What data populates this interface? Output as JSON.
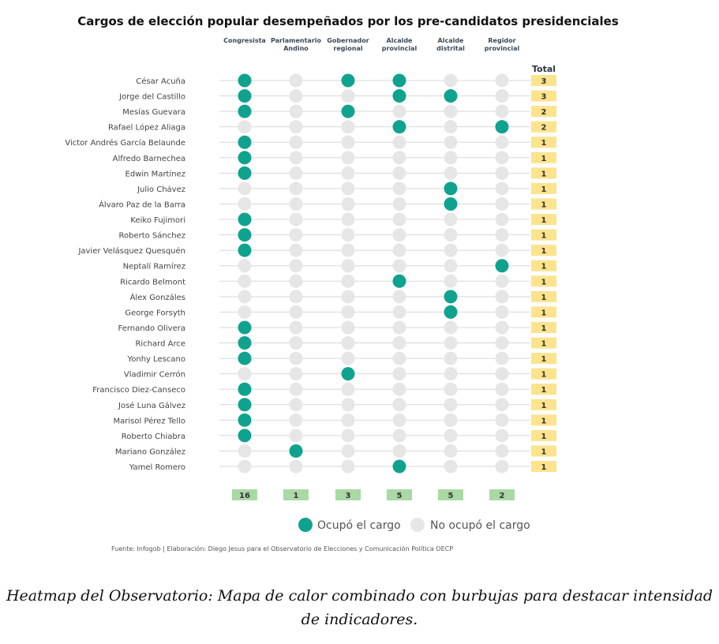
{
  "chart_data": {
    "type": "heatmap",
    "title": "Cargos de elección popular desempeñados por los pre-candidatos presidenciales",
    "columns": [
      "Congresista",
      "Parlamentario\nAndino",
      "Gobernador\nregional",
      "Alcalde\nprovincial",
      "Alcalde\ndistrital",
      "Regidor\nprovincial"
    ],
    "total_label": "Total",
    "rows": [
      {
        "name": "César Acuña",
        "values": [
          1,
          0,
          1,
          1,
          0,
          0
        ],
        "total": 3
      },
      {
        "name": "Jorge del Castillo",
        "values": [
          1,
          0,
          0,
          1,
          1,
          0
        ],
        "total": 3
      },
      {
        "name": "Mesías Guevara",
        "values": [
          1,
          0,
          1,
          0,
          0,
          0
        ],
        "total": 2
      },
      {
        "name": "Rafael López Aliaga",
        "values": [
          0,
          0,
          0,
          1,
          0,
          1
        ],
        "total": 2
      },
      {
        "name": "Victor Andrés García Belaunde",
        "values": [
          1,
          0,
          0,
          0,
          0,
          0
        ],
        "total": 1
      },
      {
        "name": "Alfredo Barnechea",
        "values": [
          1,
          0,
          0,
          0,
          0,
          0
        ],
        "total": 1
      },
      {
        "name": "Edwin Martínez",
        "values": [
          1,
          0,
          0,
          0,
          0,
          0
        ],
        "total": 1
      },
      {
        "name": "Julio Chávez",
        "values": [
          0,
          0,
          0,
          0,
          1,
          0
        ],
        "total": 1
      },
      {
        "name": "Álvaro Paz de la Barra",
        "values": [
          0,
          0,
          0,
          0,
          1,
          0
        ],
        "total": 1
      },
      {
        "name": "Keiko Fujimori",
        "values": [
          1,
          0,
          0,
          0,
          0,
          0
        ],
        "total": 1
      },
      {
        "name": "Roberto Sánchez",
        "values": [
          1,
          0,
          0,
          0,
          0,
          0
        ],
        "total": 1
      },
      {
        "name": "Javier Velásquez Quesquén",
        "values": [
          1,
          0,
          0,
          0,
          0,
          0
        ],
        "total": 1
      },
      {
        "name": "Neptalí Ramírez",
        "values": [
          0,
          0,
          0,
          0,
          0,
          1
        ],
        "total": 1
      },
      {
        "name": "Ricardo Belmont",
        "values": [
          0,
          0,
          0,
          1,
          0,
          0
        ],
        "total": 1
      },
      {
        "name": "Álex Gonzáles",
        "values": [
          0,
          0,
          0,
          0,
          1,
          0
        ],
        "total": 1
      },
      {
        "name": "George Forsyth",
        "values": [
          0,
          0,
          0,
          0,
          1,
          0
        ],
        "total": 1
      },
      {
        "name": "Fernando Olivera",
        "values": [
          1,
          0,
          0,
          0,
          0,
          0
        ],
        "total": 1
      },
      {
        "name": "Richard Arce",
        "values": [
          1,
          0,
          0,
          0,
          0,
          0
        ],
        "total": 1
      },
      {
        "name": "Yonhy Lescano",
        "values": [
          1,
          0,
          0,
          0,
          0,
          0
        ],
        "total": 1
      },
      {
        "name": "Vladimir Cerrón",
        "values": [
          0,
          0,
          1,
          0,
          0,
          0
        ],
        "total": 1
      },
      {
        "name": "Francisco Diez-Canseco",
        "values": [
          1,
          0,
          0,
          0,
          0,
          0
        ],
        "total": 1
      },
      {
        "name": "José Luna Gálvez",
        "values": [
          1,
          0,
          0,
          0,
          0,
          0
        ],
        "total": 1
      },
      {
        "name": "Marisol Pérez Tello",
        "values": [
          1,
          0,
          0,
          0,
          0,
          0
        ],
        "total": 1
      },
      {
        "name": "Roberto Chiabra",
        "values": [
          1,
          0,
          0,
          0,
          0,
          0
        ],
        "total": 1
      },
      {
        "name": "Mariano González",
        "values": [
          0,
          1,
          0,
          0,
          0,
          0
        ],
        "total": 1
      },
      {
        "name": "Yamel Romero",
        "values": [
          0,
          0,
          0,
          1,
          0,
          0
        ],
        "total": 1
      }
    ],
    "column_totals": [
      16,
      1,
      3,
      5,
      5,
      2
    ],
    "legend": [
      {
        "label": "Ocupó el cargo",
        "color": "#0fa38f"
      },
      {
        "label": "No ocupó el cargo",
        "color": "#e6e6e6"
      }
    ],
    "legend_placement": "bottom-right",
    "source": "Fuente: Infogob | Elaboración: Diego Jesus para el Observatorio de Elecciones y Comunicación Política OECP",
    "colors": {
      "filled": "#0fa38f",
      "empty": "#e6e6e6",
      "total_box": "#fde38c",
      "column_total_box": "#a9d9a5"
    }
  },
  "caption": {
    "line1": "Heatmap del Observatorio: Mapa de calor combinado con burbujas para destacar intensidad",
    "line2": "de indicadores."
  }
}
